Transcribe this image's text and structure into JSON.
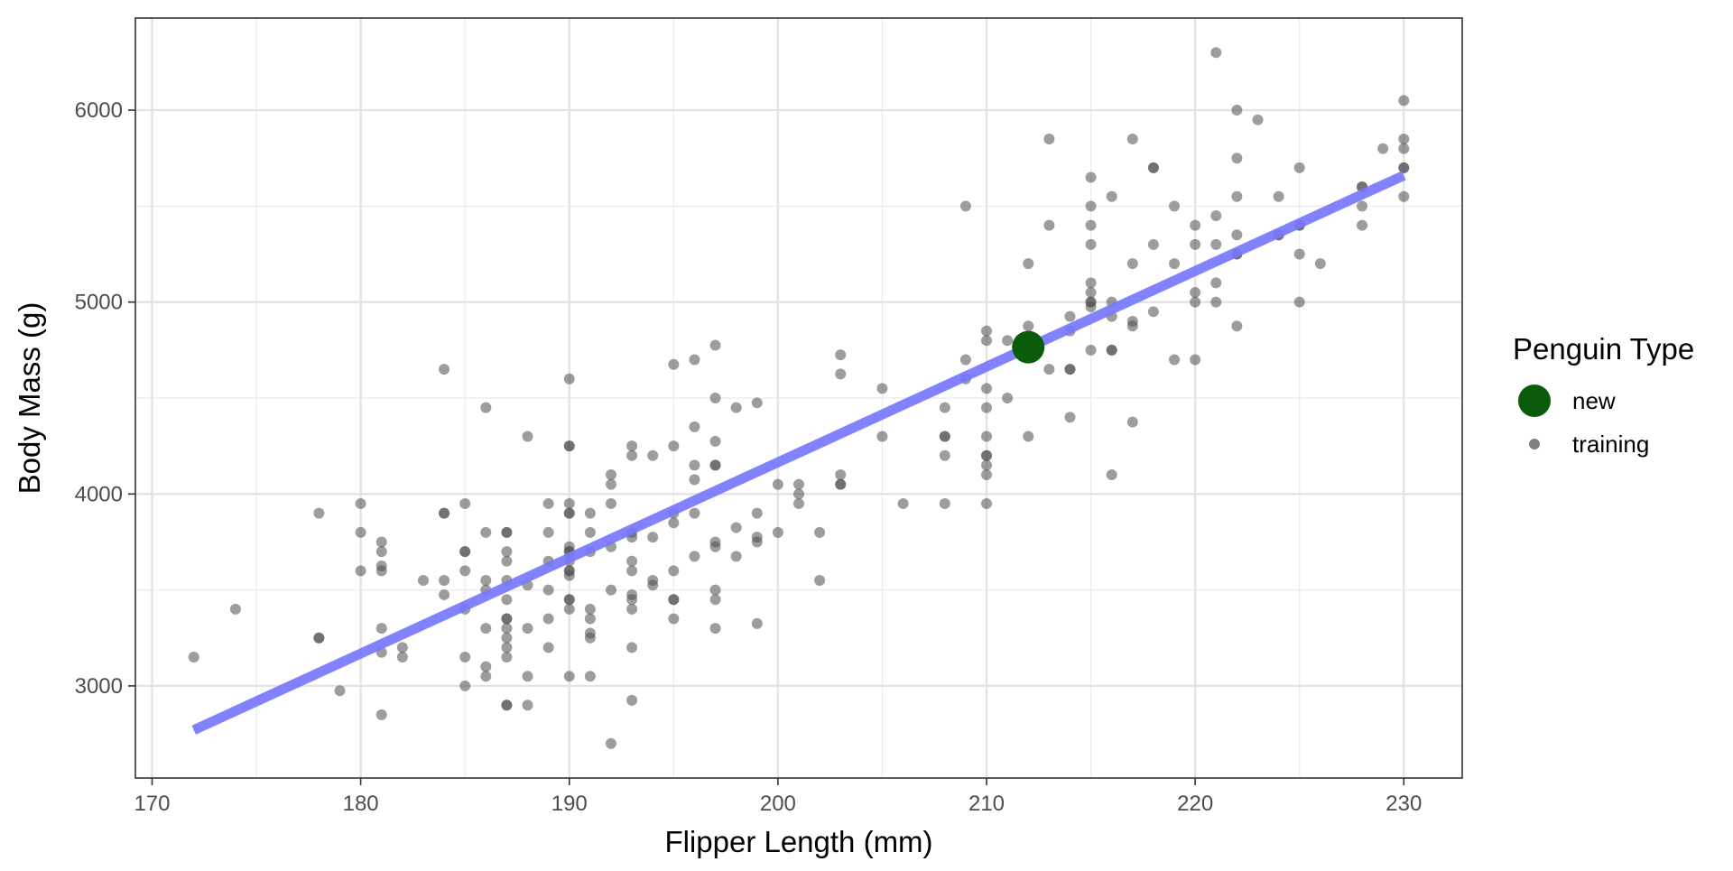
{
  "chart_data": {
    "type": "scatter",
    "xlabel": "Flipper Length (mm)",
    "ylabel": "Body Mass (g)",
    "xlim": [
      169.2,
      232.8
    ],
    "ylim": [
      2520,
      6480
    ],
    "x_ticks": [
      170,
      180,
      190,
      200,
      210,
      220,
      230
    ],
    "y_ticks": [
      3000,
      4000,
      5000,
      6000
    ],
    "x_tick_labels": [
      "170",
      "180",
      "190",
      "200",
      "210",
      "220",
      "230"
    ],
    "y_tick_labels": [
      "3000",
      "4000",
      "5000",
      "6000"
    ],
    "grid": true,
    "legend": {
      "title": "Penguin Type",
      "position": "right",
      "entries": [
        {
          "label": "new",
          "color": "#0a5c0a"
        },
        {
          "label": "training",
          "color": "#808080"
        }
      ]
    },
    "fit_line": {
      "x": [
        172,
        230
      ],
      "y": [
        2770,
        5660
      ],
      "color": "#7777ff"
    },
    "series": [
      {
        "name": "new",
        "color": "#0a5c0a",
        "points": [
          [
            212,
            4765
          ]
        ]
      },
      {
        "name": "training",
        "color": "#4d4d4d",
        "points": [
          [
            172,
            3150
          ],
          [
            174,
            3400
          ],
          [
            178,
            3900
          ],
          [
            178,
            3250
          ],
          [
            178,
            3250
          ],
          [
            179,
            2975
          ],
          [
            180,
            3950
          ],
          [
            180,
            3800
          ],
          [
            180,
            3600
          ],
          [
            181,
            3750
          ],
          [
            181,
            3700
          ],
          [
            181,
            3625
          ],
          [
            181,
            3600
          ],
          [
            181,
            3300
          ],
          [
            181,
            3175
          ],
          [
            181,
            2850
          ],
          [
            182,
            3200
          ],
          [
            182,
            3150
          ],
          [
            183,
            3550
          ],
          [
            184,
            4650
          ],
          [
            184,
            3900
          ],
          [
            184,
            3900
          ],
          [
            184,
            3550
          ],
          [
            184,
            3475
          ],
          [
            185,
            3950
          ],
          [
            185,
            3700
          ],
          [
            185,
            3700
          ],
          [
            185,
            3600
          ],
          [
            185,
            3400
          ],
          [
            185,
            3150
          ],
          [
            185,
            3000
          ],
          [
            186,
            4450
          ],
          [
            186,
            3800
          ],
          [
            186,
            3550
          ],
          [
            186,
            3500
          ],
          [
            186,
            3300
          ],
          [
            186,
            3100
          ],
          [
            186,
            3050
          ],
          [
            187,
            3800
          ],
          [
            187,
            3800
          ],
          [
            187,
            3700
          ],
          [
            187,
            3650
          ],
          [
            187,
            3550
          ],
          [
            187,
            3450
          ],
          [
            187,
            3350
          ],
          [
            187,
            3350
          ],
          [
            187,
            3300
          ],
          [
            187,
            3250
          ],
          [
            187,
            3200
          ],
          [
            187,
            3150
          ],
          [
            187,
            2900
          ],
          [
            187,
            2900
          ],
          [
            188,
            4300
          ],
          [
            188,
            3525
          ],
          [
            188,
            3300
          ],
          [
            188,
            3050
          ],
          [
            188,
            2900
          ],
          [
            189,
            3950
          ],
          [
            189,
            3800
          ],
          [
            189,
            3650
          ],
          [
            189,
            3500
          ],
          [
            189,
            3350
          ],
          [
            189,
            3200
          ],
          [
            190,
            4600
          ],
          [
            190,
            4250
          ],
          [
            190,
            4250
          ],
          [
            190,
            3950
          ],
          [
            190,
            3900
          ],
          [
            190,
            3900
          ],
          [
            190,
            3725
          ],
          [
            190,
            3700
          ],
          [
            190,
            3700
          ],
          [
            190,
            3650
          ],
          [
            190,
            3600
          ],
          [
            190,
            3600
          ],
          [
            190,
            3575
          ],
          [
            190,
            3450
          ],
          [
            190,
            3450
          ],
          [
            190,
            3400
          ],
          [
            190,
            3050
          ],
          [
            191,
            3900
          ],
          [
            191,
            3800
          ],
          [
            191,
            3700
          ],
          [
            191,
            3400
          ],
          [
            191,
            3350
          ],
          [
            191,
            3275
          ],
          [
            191,
            3250
          ],
          [
            191,
            3050
          ],
          [
            192,
            4100
          ],
          [
            192,
            4050
          ],
          [
            192,
            3950
          ],
          [
            192,
            3725
          ],
          [
            192,
            3500
          ],
          [
            192,
            2700
          ],
          [
            193,
            4250
          ],
          [
            193,
            4200
          ],
          [
            193,
            3800
          ],
          [
            193,
            3775
          ],
          [
            193,
            3650
          ],
          [
            193,
            3600
          ],
          [
            193,
            3475
          ],
          [
            193,
            3450
          ],
          [
            193,
            3400
          ],
          [
            193,
            3200
          ],
          [
            193,
            2925
          ],
          [
            194,
            4200
          ],
          [
            194,
            3775
          ],
          [
            194,
            3550
          ],
          [
            194,
            3525
          ],
          [
            195,
            4675
          ],
          [
            195,
            4250
          ],
          [
            195,
            3900
          ],
          [
            195,
            3850
          ],
          [
            195,
            3600
          ],
          [
            195,
            3450
          ],
          [
            195,
            3450
          ],
          [
            195,
            3350
          ],
          [
            196,
            4700
          ],
          [
            196,
            4350
          ],
          [
            196,
            4150
          ],
          [
            196,
            4075
          ],
          [
            196,
            3900
          ],
          [
            196,
            3675
          ],
          [
            197,
            4775
          ],
          [
            197,
            4500
          ],
          [
            197,
            4275
          ],
          [
            197,
            4150
          ],
          [
            197,
            4150
          ],
          [
            197,
            3750
          ],
          [
            197,
            3725
          ],
          [
            197,
            3500
          ],
          [
            197,
            3450
          ],
          [
            197,
            3300
          ],
          [
            198,
            4450
          ],
          [
            198,
            3825
          ],
          [
            198,
            3675
          ],
          [
            199,
            4475
          ],
          [
            199,
            3900
          ],
          [
            199,
            3775
          ],
          [
            199,
            3750
          ],
          [
            199,
            3325
          ],
          [
            200,
            4050
          ],
          [
            200,
            3800
          ],
          [
            201,
            4050
          ],
          [
            201,
            4000
          ],
          [
            201,
            3950
          ],
          [
            202,
            3800
          ],
          [
            202,
            3550
          ],
          [
            203,
            4725
          ],
          [
            203,
            4625
          ],
          [
            203,
            4100
          ],
          [
            203,
            4050
          ],
          [
            203,
            4050
          ],
          [
            205,
            4550
          ],
          [
            205,
            4300
          ],
          [
            206,
            3950
          ],
          [
            208,
            4450
          ],
          [
            208,
            4300
          ],
          [
            208,
            4300
          ],
          [
            208,
            4200
          ],
          [
            208,
            3950
          ],
          [
            209,
            5500
          ],
          [
            209,
            4700
          ],
          [
            209,
            4600
          ],
          [
            210,
            4850
          ],
          [
            210,
            4800
          ],
          [
            210,
            4550
          ],
          [
            210,
            4450
          ],
          [
            210,
            4300
          ],
          [
            210,
            4200
          ],
          [
            210,
            4200
          ],
          [
            210,
            4150
          ],
          [
            210,
            4100
          ],
          [
            210,
            3950
          ],
          [
            211,
            4800
          ],
          [
            211,
            4500
          ],
          [
            212,
            5200
          ],
          [
            212,
            4875
          ],
          [
            212,
            4300
          ],
          [
            213,
            5850
          ],
          [
            213,
            5400
          ],
          [
            213,
            4650
          ],
          [
            214,
            4925
          ],
          [
            214,
            4850
          ],
          [
            214,
            4650
          ],
          [
            214,
            4650
          ],
          [
            214,
            4400
          ],
          [
            215,
            5650
          ],
          [
            215,
            5500
          ],
          [
            215,
            5400
          ],
          [
            215,
            5300
          ],
          [
            215,
            5100
          ],
          [
            215,
            5050
          ],
          [
            215,
            5000
          ],
          [
            215,
            5000
          ],
          [
            215,
            4975
          ],
          [
            215,
            4750
          ],
          [
            216,
            5550
          ],
          [
            216,
            5000
          ],
          [
            216,
            4925
          ],
          [
            216,
            4750
          ],
          [
            216,
            4750
          ],
          [
            216,
            4100
          ],
          [
            217,
            5850
          ],
          [
            217,
            5200
          ],
          [
            217,
            4900
          ],
          [
            217,
            4875
          ],
          [
            217,
            4375
          ],
          [
            218,
            5700
          ],
          [
            218,
            5700
          ],
          [
            218,
            5300
          ],
          [
            218,
            4950
          ],
          [
            219,
            5500
          ],
          [
            219,
            5200
          ],
          [
            219,
            4700
          ],
          [
            220,
            5400
          ],
          [
            220,
            5300
          ],
          [
            220,
            5050
          ],
          [
            220,
            5000
          ],
          [
            220,
            4700
          ],
          [
            221,
            6300
          ],
          [
            221,
            5450
          ],
          [
            221,
            5300
          ],
          [
            221,
            5100
          ],
          [
            221,
            5000
          ],
          [
            222,
            6000
          ],
          [
            222,
            5750
          ],
          [
            222,
            5550
          ],
          [
            222,
            5350
          ],
          [
            222,
            5250
          ],
          [
            222,
            5250
          ],
          [
            222,
            4875
          ],
          [
            223,
            5950
          ],
          [
            224,
            5550
          ],
          [
            224,
            5350
          ],
          [
            224,
            5350
          ],
          [
            225,
            5700
          ],
          [
            225,
            5400
          ],
          [
            225,
            5400
          ],
          [
            225,
            5250
          ],
          [
            225,
            5000
          ],
          [
            226,
            5200
          ],
          [
            228,
            5600
          ],
          [
            228,
            5600
          ],
          [
            228,
            5500
          ],
          [
            228,
            5400
          ],
          [
            229,
            5800
          ],
          [
            230,
            6050
          ],
          [
            230,
            5850
          ],
          [
            230,
            5800
          ],
          [
            230,
            5700
          ],
          [
            230,
            5700
          ],
          [
            230,
            5550
          ]
        ]
      }
    ]
  }
}
